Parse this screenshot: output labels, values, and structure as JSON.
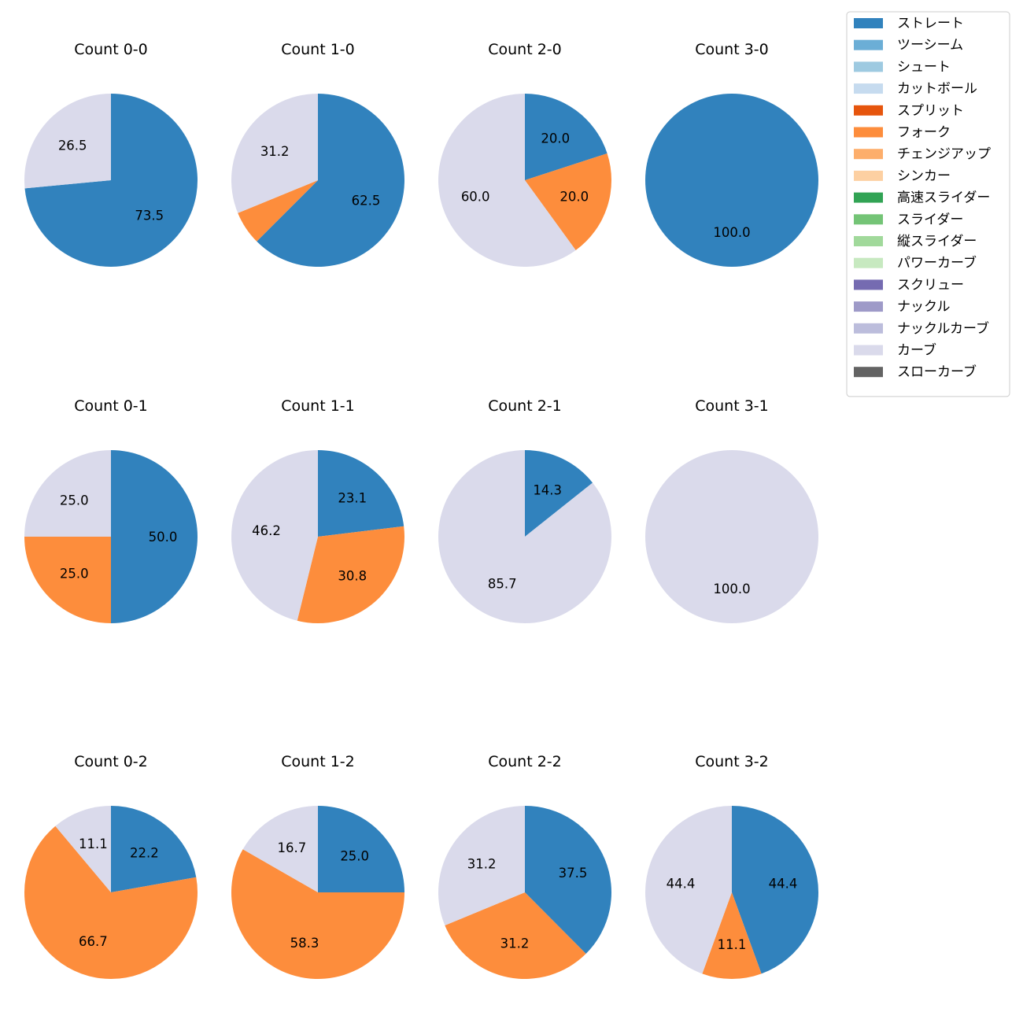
{
  "chart_data": {
    "type": "pie",
    "legend_position": "top-right",
    "categories": [
      {
        "name": "ストレート",
        "color": "#3182bd"
      },
      {
        "name": "ツーシーム",
        "color": "#6baed6"
      },
      {
        "name": "シュート",
        "color": "#9ecae1"
      },
      {
        "name": "カットボール",
        "color": "#c6dbef"
      },
      {
        "name": "スプリット",
        "color": "#e6550d"
      },
      {
        "name": "フォーク",
        "color": "#fd8d3c"
      },
      {
        "name": "チェンジアップ",
        "color": "#fdae6b"
      },
      {
        "name": "シンカー",
        "color": "#fdd0a2"
      },
      {
        "name": "高速スライダー",
        "color": "#31a354"
      },
      {
        "name": "スライダー",
        "color": "#74c476"
      },
      {
        "name": "縦スライダー",
        "color": "#a1d99b"
      },
      {
        "name": "パワーカーブ",
        "color": "#c7e9c0"
      },
      {
        "name": "スクリュー",
        "color": "#756bb1"
      },
      {
        "name": "ナックル",
        "color": "#9e9ac8"
      },
      {
        "name": "ナックルカーブ",
        "color": "#bcbddc"
      },
      {
        "name": "カーブ",
        "color": "#dadaeb"
      },
      {
        "name": "スローカーブ",
        "color": "#636363"
      }
    ],
    "pies": [
      {
        "title": "Count 0-0",
        "slices": [
          {
            "category": "ストレート",
            "value": 73.5
          },
          {
            "category": "カーブ",
            "value": 26.5
          }
        ]
      },
      {
        "title": "Count 1-0",
        "slices": [
          {
            "category": "ストレート",
            "value": 62.5
          },
          {
            "category": "フォーク",
            "value": 6.3
          },
          {
            "category": "カーブ",
            "value": 31.2
          }
        ]
      },
      {
        "title": "Count 2-0",
        "slices": [
          {
            "category": "ストレート",
            "value": 20.0
          },
          {
            "category": "フォーク",
            "value": 20.0
          },
          {
            "category": "カーブ",
            "value": 60.0
          }
        ]
      },
      {
        "title": "Count 3-0",
        "slices": [
          {
            "category": "ストレート",
            "value": 100.0
          }
        ]
      },
      {
        "title": "Count 0-1",
        "slices": [
          {
            "category": "ストレート",
            "value": 50.0
          },
          {
            "category": "フォーク",
            "value": 25.0
          },
          {
            "category": "カーブ",
            "value": 25.0
          }
        ]
      },
      {
        "title": "Count 1-1",
        "slices": [
          {
            "category": "ストレート",
            "value": 23.1
          },
          {
            "category": "フォーク",
            "value": 30.8
          },
          {
            "category": "カーブ",
            "value": 46.2
          }
        ]
      },
      {
        "title": "Count 2-1",
        "slices": [
          {
            "category": "ストレート",
            "value": 14.3
          },
          {
            "category": "カーブ",
            "value": 85.7
          }
        ]
      },
      {
        "title": "Count 3-1",
        "slices": [
          {
            "category": "カーブ",
            "value": 100.0
          }
        ]
      },
      {
        "title": "Count 0-2",
        "slices": [
          {
            "category": "ストレート",
            "value": 22.2
          },
          {
            "category": "フォーク",
            "value": 66.7
          },
          {
            "category": "カーブ",
            "value": 11.1
          }
        ]
      },
      {
        "title": "Count 1-2",
        "slices": [
          {
            "category": "ストレート",
            "value": 25.0
          },
          {
            "category": "フォーク",
            "value": 58.3
          },
          {
            "category": "カーブ",
            "value": 16.7
          }
        ]
      },
      {
        "title": "Count 2-2",
        "slices": [
          {
            "category": "ストレート",
            "value": 37.5
          },
          {
            "category": "フォーク",
            "value": 31.2
          },
          {
            "category": "カーブ",
            "value": 31.2
          }
        ]
      },
      {
        "title": "Count 3-2",
        "slices": [
          {
            "category": "ストレート",
            "value": 44.4
          },
          {
            "category": "フォーク",
            "value": 11.1
          },
          {
            "category": "カーブ",
            "value": 44.4
          }
        ]
      }
    ]
  }
}
